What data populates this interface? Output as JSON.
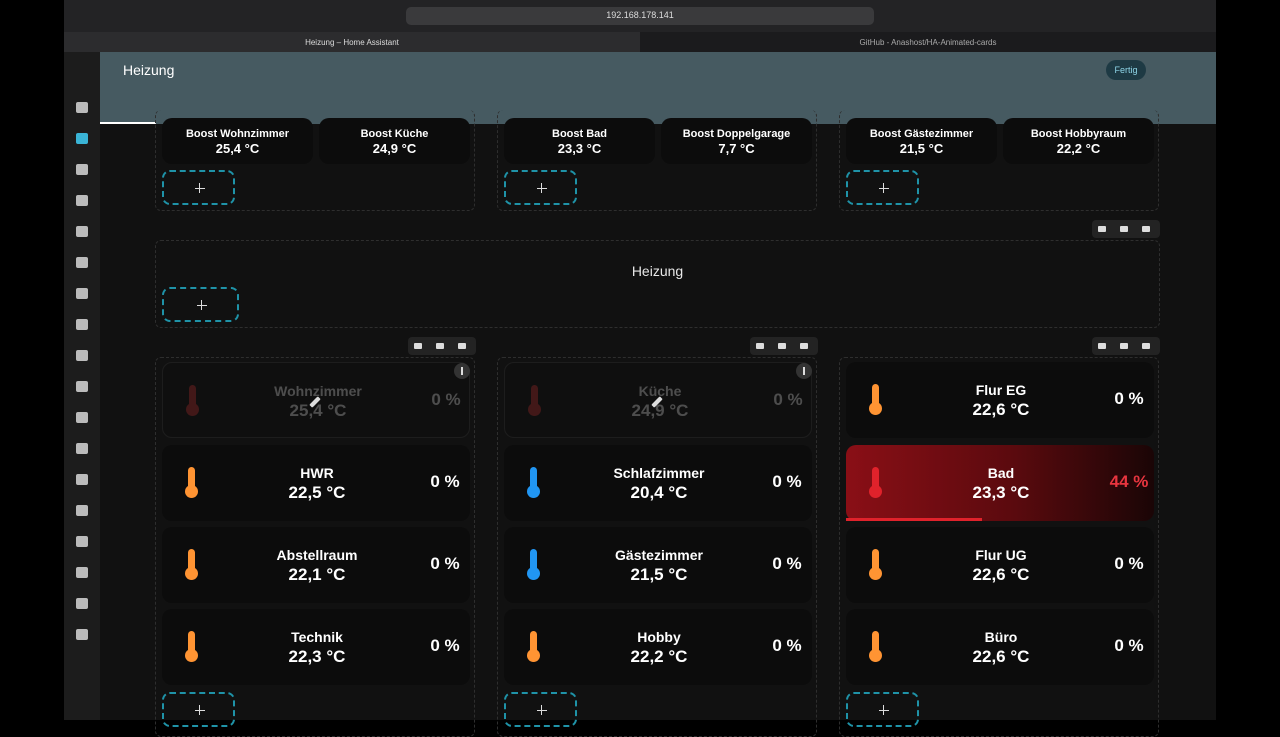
{
  "browser": {
    "url": "192.168.178.141",
    "tabs": [
      "Heizung – Home Assistant",
      "GitHub - Anashost/HA-Animated-cards"
    ]
  },
  "header": {
    "title": "Heizung",
    "done_button": "Fertig"
  },
  "boost_sections": [
    [
      {
        "name": "Boost Wohnzimmer",
        "temperature": "25,4 °C"
      },
      {
        "name": "Boost Küche",
        "temperature": "24,9 °C"
      }
    ],
    [
      {
        "name": "Boost Bad",
        "temperature": "23,3 °C"
      },
      {
        "name": "Boost Doppelgarage",
        "temperature": "7,7 °C"
      }
    ],
    [
      {
        "name": "Boost Gästezimmer",
        "temperature": "21,5 °C"
      },
      {
        "name": "Boost Hobbyraum",
        "temperature": "22,2 °C"
      }
    ]
  ],
  "heading": "Heizung",
  "columns": [
    [
      {
        "name": "Wohnzimmer",
        "temperature": "25,4 °C",
        "level": "0 %",
        "color": "#d32f2f",
        "faded": true
      },
      {
        "name": "HWR",
        "temperature": "22,5 °C",
        "level": "0 %",
        "color": "#ff9433"
      },
      {
        "name": "Abstellraum",
        "temperature": "22,1 °C",
        "level": "0 %",
        "color": "#ff9433"
      },
      {
        "name": "Technik",
        "temperature": "22,3 °C",
        "level": "0 %",
        "color": "#ff9433"
      }
    ],
    [
      {
        "name": "Küche",
        "temperature": "24,9 °C",
        "level": "0 %",
        "color": "#d32f2f",
        "faded": true
      },
      {
        "name": "Schlafzimmer",
        "temperature": "20,4 °C",
        "level": "0 %",
        "color": "#2196f3"
      },
      {
        "name": "Gästezimmer",
        "temperature": "21,5 °C",
        "level": "0 %",
        "color": "#2196f3"
      },
      {
        "name": "Hobby",
        "temperature": "22,2 °C",
        "level": "0 %",
        "color": "#ff9433"
      }
    ],
    [
      {
        "name": "Flur EG",
        "temperature": "22,6 °C",
        "level": "0 %",
        "color": "#ff9433"
      },
      {
        "name": "Bad",
        "temperature": "23,3 °C",
        "level": "44 %",
        "color": "#e0222b",
        "heating": true
      },
      {
        "name": "Flur UG",
        "temperature": "22,6 °C",
        "level": "0 %",
        "color": "#ff9433"
      },
      {
        "name": "Büro",
        "temperature": "22,6 °C",
        "level": "0 %",
        "color": "#ff9433"
      }
    ]
  ]
}
